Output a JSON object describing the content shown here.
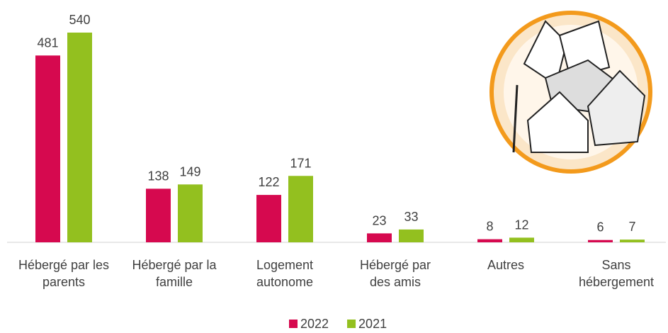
{
  "chart_data": {
    "type": "bar",
    "categories": [
      "Hébergé par les\nparents",
      "Hébergé par la\nfamille",
      "Logement\nautonome",
      "Hébergé par\ndes amis",
      "Autres",
      "Sans\nhébergement"
    ],
    "series": [
      {
        "name": "2022",
        "color": "#d6094f",
        "values": [
          481,
          138,
          122,
          23,
          8,
          6
        ]
      },
      {
        "name": "2021",
        "color": "#93c01f",
        "values": [
          540,
          149,
          171,
          33,
          12,
          7
        ]
      }
    ],
    "legend": "bottom"
  }
}
